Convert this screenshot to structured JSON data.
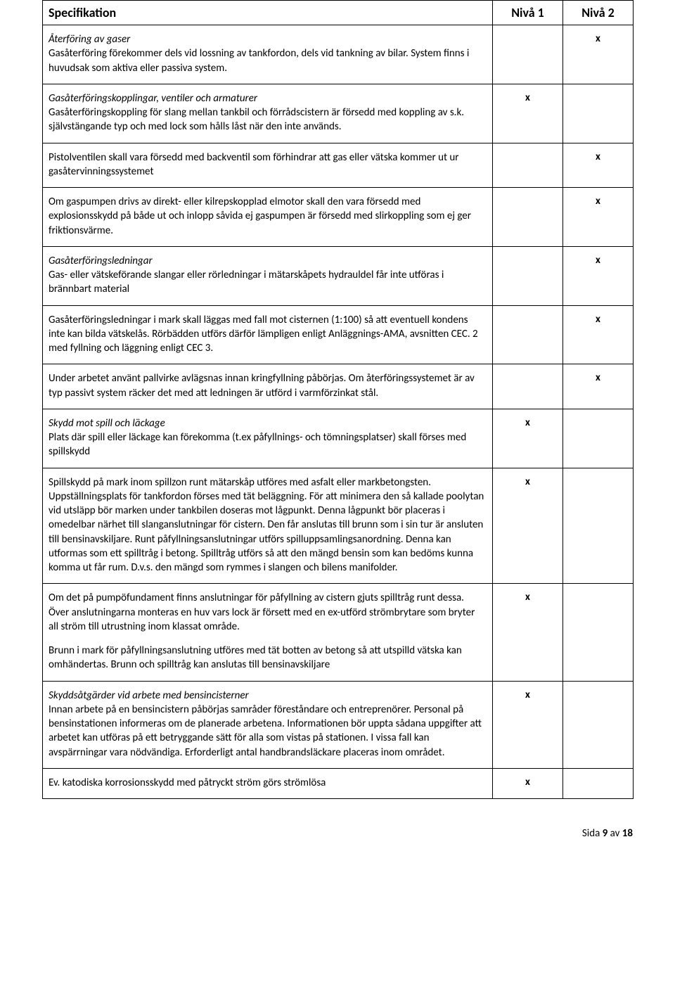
{
  "header": {
    "spec": "Specifikation",
    "lvl1": "Nivå 1",
    "lvl2": "Nivå 2"
  },
  "marks": {
    "x": "x"
  },
  "rows": [
    {
      "blocks": [
        {
          "title": "Återföring av gaser",
          "body": "Gasåterföring förekommer dels vid lossning av tankfordon, dels vid tankning av bilar. System finns i huvudsak som aktiva eller passiva system."
        }
      ],
      "n1": "",
      "n2": "x"
    },
    {
      "blocks": [
        {
          "title": "Gasåterföringskopplingar, ventiler och armaturer",
          "body": "Gasåterföringskoppling för slang mellan tankbil och förrådscistern är försedd med koppling av s.k. självstängande typ och med lock som hålls låst när den inte används."
        }
      ],
      "n1": "x",
      "n2": ""
    },
    {
      "blocks": [
        {
          "title": "",
          "body": "Pistolventilen skall vara försedd med backventil som förhindrar att gas eller vätska kommer ut ur gasåtervinningssystemet"
        }
      ],
      "n1": "",
      "n2": "x"
    },
    {
      "blocks": [
        {
          "title": "",
          "body": "Om gaspumpen drivs av direkt- eller kilrepskopplad elmotor skall den vara försedd med explosionsskydd på både ut och inlopp såvida ej gaspumpen är försedd med slirkoppling som ej ger friktionsvärme."
        }
      ],
      "n1": "",
      "n2": "x"
    },
    {
      "blocks": [
        {
          "title": "Gasåterföringsledningar",
          "body": "Gas- eller vätskeförande slangar eller rörledningar i mätarskåpets hydrauldel får inte utföras i brännbart material"
        }
      ],
      "n1": "",
      "n2": "x"
    },
    {
      "blocks": [
        {
          "title": "",
          "body": "Gasåterföringsledningar i mark skall läggas med fall mot cisternen (1:100) så att eventuell kondens inte kan bilda vätskelås. Rörbädden utförs därför lämpligen enligt Anläggnings-AMA, avsnitten CEC. 2 med fyllning och läggning enligt CEC 3."
        }
      ],
      "n1": "",
      "n2": "x"
    },
    {
      "blocks": [
        {
          "title": "",
          "body": "Under arbetet använt pallvirke avlägsnas innan kringfyllning påbörjas. Om återföringssystemet är av typ passivt system räcker det med att ledningen är utförd i varmförzinkat stål."
        }
      ],
      "n1": "",
      "n2": "x"
    },
    {
      "blocks": [
        {
          "title": "Skydd mot spill och läckage",
          "body": "Plats där spill eller läckage kan förekomma (t.ex påfyllnings- och tömningsplatser) skall förses med spillskydd"
        }
      ],
      "n1": "x",
      "n2": ""
    },
    {
      "blocks": [
        {
          "title": "",
          "body": "Spillskydd på mark inom spillzon runt mätarskåp utföres med asfalt eller markbetongsten. Uppställningsplats för tankfordon förses med tät beläggning. För att minimera den så kallade poolytan vid utsläpp bör marken under tankbilen doseras mot lågpunkt. Denna lågpunkt bör placeras i omedelbar närhet till slanganslutningar för cistern. Den får anslutas till brunn som i sin tur är ansluten till bensinavskiljare. Runt påfyllningsanslutningar utförs spilluppsamlingsanordning. Denna kan utformas som ett spilltråg i betong. Spilltråg utförs så att den mängd bensin som kan bedöms kunna komma ut får rum.  D.v.s. den mängd som rymmes i slangen och bilens manifolder."
        }
      ],
      "n1": "x",
      "n2": ""
    },
    {
      "blocks": [
        {
          "title": "",
          "body": "Om det på pumpöfundament finns anslutningar för påfyllning av cistern gjuts spilltråg runt dessa. Över anslutningarna monteras en huv vars lock är försett med en ex-utförd strömbrytare som bryter all ström till utrustning inom klassat område."
        },
        {
          "title": "",
          "body": "Brunn i mark för påfyllningsanslutning utföres med tät botten av betong så att utspilld vätska kan omhändertas. Brunn och spilltråg kan anslutas till bensinavskiljare"
        }
      ],
      "n1": "x",
      "n2": ""
    },
    {
      "blocks": [
        {
          "title": "Skyddsåtgärder vid arbete med bensincisterner",
          "body": "Innan arbete på en bensincistern påbörjas samråder föreståndare och entreprenörer. Personal på bensinstationen informeras om de planerade arbetena. Informationen bör uppta sådana uppgifter att arbetet kan utföras på ett betryggande sätt för alla som vistas på stationen. I vissa fall kan avspärrningar vara nödvändiga. Erforderligt antal handbrandsläckare placeras inom området."
        }
      ],
      "n1": "x",
      "n2": ""
    },
    {
      "blocks": [
        {
          "title": "",
          "body": "Ev. katodiska korrosionsskydd med påtryckt ström görs strömlösa"
        }
      ],
      "n1": "x",
      "n2": ""
    }
  ],
  "footer": {
    "prefix": "Sida ",
    "page": "9",
    "mid": " av ",
    "total": "18"
  }
}
